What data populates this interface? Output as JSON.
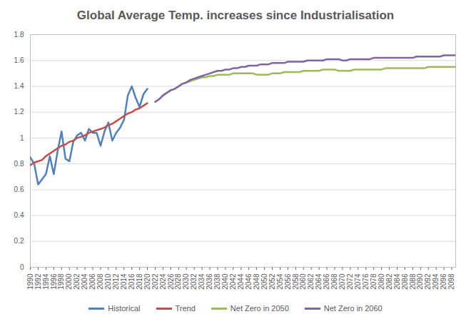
{
  "chart_data": {
    "type": "line",
    "title": "Global Average Temp. increases since Industrialisation",
    "x": [
      1990,
      1991,
      1992,
      1993,
      1994,
      1995,
      1996,
      1997,
      1998,
      1999,
      2000,
      2001,
      2002,
      2003,
      2004,
      2005,
      2006,
      2007,
      2008,
      2009,
      2010,
      2011,
      2012,
      2013,
      2014,
      2015,
      2016,
      2017,
      2018,
      2019,
      2020,
      2021,
      2022,
      2023,
      2024,
      2025,
      2026,
      2027,
      2028,
      2029,
      2030,
      2031,
      2032,
      2033,
      2034,
      2035,
      2036,
      2037,
      2038,
      2039,
      2040,
      2041,
      2042,
      2043,
      2044,
      2045,
      2046,
      2047,
      2048,
      2049,
      2050,
      2051,
      2052,
      2053,
      2054,
      2055,
      2056,
      2057,
      2058,
      2059,
      2060,
      2061,
      2062,
      2063,
      2064,
      2065,
      2066,
      2067,
      2068,
      2069,
      2070,
      2071,
      2072,
      2073,
      2074,
      2075,
      2076,
      2077,
      2078,
      2079,
      2080,
      2081,
      2082,
      2083,
      2084,
      2085,
      2086,
      2087,
      2088,
      2089,
      2090,
      2091,
      2092,
      2093,
      2094,
      2095,
      2096,
      2097,
      2098,
      2099
    ],
    "series": [
      {
        "name": "Historical",
        "color": "#4f81bd",
        "values": [
          0.85,
          0.8,
          0.64,
          0.68,
          0.72,
          0.86,
          0.72,
          0.9,
          1.05,
          0.84,
          0.82,
          0.97,
          1.02,
          1.04,
          0.98,
          1.07,
          1.04,
          1.04,
          0.94,
          1.05,
          1.12,
          0.98,
          1.04,
          1.08,
          1.14,
          1.33,
          1.4,
          1.31,
          1.24,
          1.34,
          1.38,
          null,
          null,
          null,
          null,
          null,
          null,
          null,
          null,
          null,
          null,
          null,
          null,
          null,
          null,
          null,
          null,
          null,
          null,
          null,
          null,
          null,
          null,
          null,
          null,
          null,
          null,
          null,
          null,
          null,
          null,
          null,
          null,
          null,
          null,
          null,
          null,
          null,
          null,
          null,
          null,
          null,
          null,
          null,
          null,
          null,
          null,
          null,
          null,
          null,
          null,
          null,
          null,
          null,
          null,
          null,
          null,
          null,
          null,
          null,
          null,
          null,
          null,
          null,
          null,
          null,
          null,
          null,
          null,
          null,
          null,
          null,
          null,
          null,
          null,
          null,
          null,
          null,
          null,
          null
        ]
      },
      {
        "name": "Trend",
        "color": "#c0504d",
        "values": [
          0.79,
          0.81,
          0.82,
          0.83,
          0.86,
          0.88,
          0.9,
          0.92,
          0.94,
          0.95,
          0.97,
          0.98,
          1.0,
          1.01,
          1.02,
          1.04,
          1.05,
          1.06,
          1.07,
          1.08,
          1.1,
          1.11,
          1.13,
          1.15,
          1.17,
          1.19,
          1.2,
          1.22,
          1.23,
          1.25,
          1.27,
          null,
          null,
          null,
          null,
          null,
          null,
          null,
          null,
          null,
          null,
          null,
          null,
          null,
          null,
          null,
          null,
          null,
          null,
          null,
          null,
          null,
          null,
          null,
          null,
          null,
          null,
          null,
          null,
          null,
          null,
          null,
          null,
          null,
          null,
          null,
          null,
          null,
          null,
          null,
          null,
          null,
          null,
          null,
          null,
          null,
          null,
          null,
          null,
          null,
          null,
          null,
          null,
          null,
          null,
          null,
          null,
          null,
          null,
          null,
          null,
          null,
          null,
          null,
          null,
          null,
          null,
          null,
          null,
          null,
          null,
          null,
          null,
          null,
          null,
          null,
          null,
          null,
          null,
          null
        ]
      },
      {
        "name": "Net Zero in 2050",
        "color": "#9bbb59",
        "values": [
          null,
          null,
          null,
          null,
          null,
          null,
          null,
          null,
          null,
          null,
          null,
          null,
          null,
          null,
          null,
          null,
          null,
          null,
          null,
          null,
          null,
          null,
          null,
          null,
          null,
          null,
          null,
          null,
          null,
          null,
          null,
          null,
          1.28,
          1.3,
          1.33,
          1.35,
          1.37,
          1.38,
          1.4,
          1.42,
          1.43,
          1.44,
          1.45,
          1.46,
          1.47,
          1.47,
          1.48,
          1.48,
          1.49,
          1.49,
          1.49,
          1.49,
          1.5,
          1.5,
          1.5,
          1.5,
          1.5,
          1.5,
          1.49,
          1.49,
          1.49,
          1.49,
          1.5,
          1.5,
          1.5,
          1.51,
          1.51,
          1.51,
          1.51,
          1.51,
          1.52,
          1.52,
          1.52,
          1.52,
          1.52,
          1.53,
          1.53,
          1.53,
          1.53,
          1.52,
          1.52,
          1.52,
          1.52,
          1.53,
          1.53,
          1.53,
          1.53,
          1.53,
          1.53,
          1.53,
          1.53,
          1.54,
          1.54,
          1.54,
          1.54,
          1.54,
          1.54,
          1.54,
          1.54,
          1.54,
          1.54,
          1.54,
          1.55,
          1.55,
          1.55,
          1.55,
          1.55,
          1.55,
          1.55,
          1.55
        ]
      },
      {
        "name": "Net Zero in 2060",
        "color": "#8064a2",
        "values": [
          null,
          null,
          null,
          null,
          null,
          null,
          null,
          null,
          null,
          null,
          null,
          null,
          null,
          null,
          null,
          null,
          null,
          null,
          null,
          null,
          null,
          null,
          null,
          null,
          null,
          null,
          null,
          null,
          null,
          null,
          null,
          null,
          1.28,
          1.3,
          1.33,
          1.35,
          1.37,
          1.38,
          1.4,
          1.42,
          1.43,
          1.45,
          1.46,
          1.47,
          1.48,
          1.49,
          1.5,
          1.51,
          1.52,
          1.52,
          1.53,
          1.53,
          1.54,
          1.54,
          1.55,
          1.55,
          1.56,
          1.56,
          1.56,
          1.57,
          1.57,
          1.57,
          1.58,
          1.58,
          1.58,
          1.58,
          1.59,
          1.59,
          1.59,
          1.59,
          1.59,
          1.6,
          1.6,
          1.6,
          1.6,
          1.6,
          1.61,
          1.61,
          1.61,
          1.61,
          1.6,
          1.6,
          1.61,
          1.61,
          1.61,
          1.61,
          1.61,
          1.61,
          1.62,
          1.62,
          1.62,
          1.62,
          1.62,
          1.62,
          1.62,
          1.62,
          1.62,
          1.62,
          1.62,
          1.63,
          1.63,
          1.63,
          1.63,
          1.63,
          1.63,
          1.63,
          1.64,
          1.64,
          1.64,
          1.64
        ]
      }
    ],
    "xlim": [
      1990,
      2099
    ],
    "xticks": [
      1990,
      1992,
      1994,
      1996,
      1998,
      2000,
      2002,
      2004,
      2006,
      2008,
      2010,
      2012,
      2014,
      2016,
      2018,
      2020,
      2022,
      2024,
      2026,
      2028,
      2030,
      2032,
      2034,
      2036,
      2038,
      2040,
      2042,
      2044,
      2046,
      2048,
      2050,
      2052,
      2054,
      2056,
      2058,
      2060,
      2062,
      2064,
      2066,
      2068,
      2070,
      2072,
      2074,
      2076,
      2078,
      2080,
      2082,
      2084,
      2086,
      2088,
      2090,
      2092,
      2094,
      2096,
      2098
    ],
    "ylim": [
      0,
      1.8
    ],
    "yticks": [
      0,
      0.2,
      0.4,
      0.6,
      0.8,
      1,
      1.2,
      1.4,
      1.6,
      1.8
    ],
    "grid": true,
    "legend": "bottom"
  }
}
